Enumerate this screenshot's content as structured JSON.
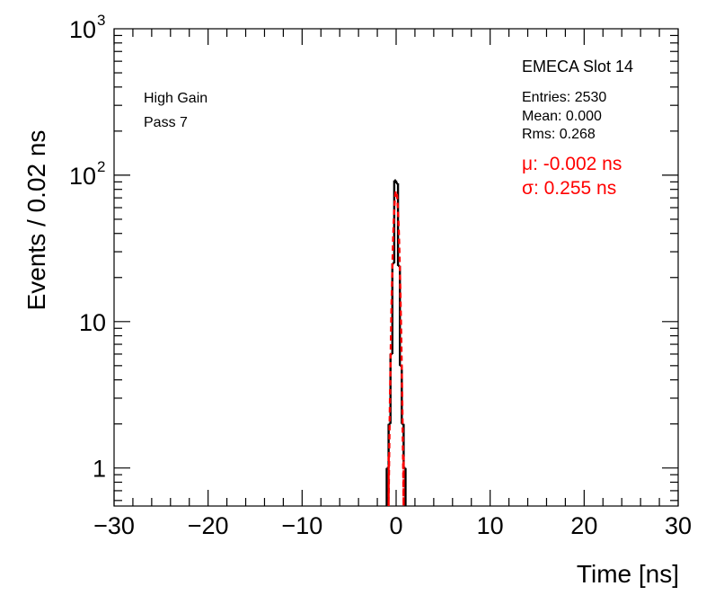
{
  "chart_data": {
    "type": "histogram",
    "title": "",
    "xlabel": "Time [ns]",
    "ylabel": "Events / 0.02 ns",
    "xlim": [
      -30,
      30
    ],
    "ylim": [
      0.55,
      1000
    ],
    "yscale": "log",
    "x_ticks": [
      -30,
      -20,
      -10,
      0,
      10,
      20,
      30
    ],
    "x_tick_labels": [
      "−30",
      "−20",
      "−10",
      "0",
      "10",
      "20",
      "30"
    ],
    "y_major_ticks": [
      1,
      10,
      100,
      1000
    ],
    "y_tick_labels": [
      "1",
      "10",
      "10",
      "10"
    ],
    "y_tick_exponents": [
      "",
      "",
      "2",
      "3"
    ],
    "grid": false,
    "labels_left": [
      "High Gain",
      "Pass 7"
    ],
    "stats": {
      "name": "EMECA Slot 14",
      "entries_label": "Entries: 2530",
      "mean_label": "Mean: 0.000",
      "rms_label": "Rms: 0.268"
    },
    "fit": {
      "mu_label": "μ: -0.002 ns",
      "sigma_label": "σ: 0.255 ns",
      "mu": -0.002,
      "sigma": 0.255,
      "color": "#ff0000"
    },
    "histogram": {
      "color": "#000000",
      "bin_edges": [
        -1.0,
        -0.8,
        -0.6,
        -0.4,
        -0.2,
        0.0,
        0.2,
        0.4,
        0.6,
        0.8,
        1.0
      ],
      "counts": [
        1,
        2,
        6,
        25,
        92,
        88,
        24,
        5,
        2,
        1
      ]
    }
  }
}
